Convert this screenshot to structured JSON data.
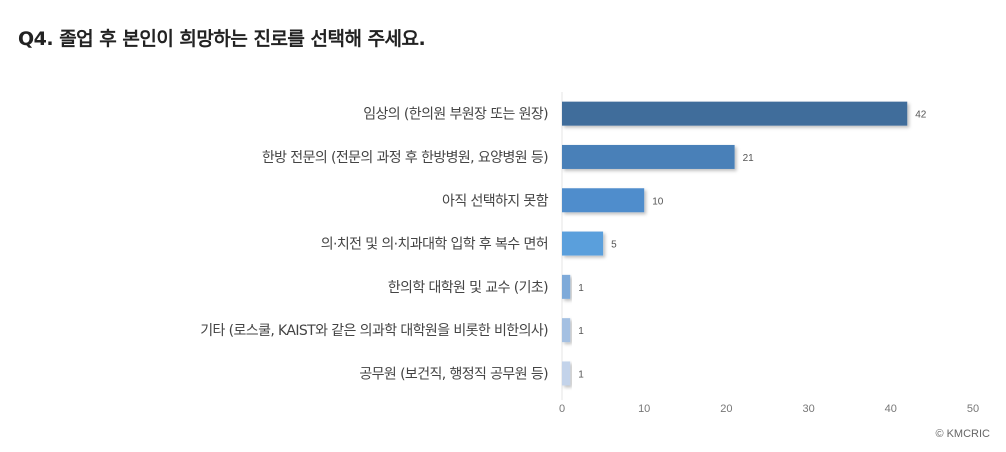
{
  "title": "Q4. 졸업 후 본인이 희망하는 진로를 선택해 주세요.",
  "credit": "© KMCRIC",
  "chart_data": {
    "type": "bar",
    "orientation": "horizontal",
    "categories": [
      "임상의 (한의원 부원장 또는 원장)",
      "한방 전문의 (전문의 과정 후 한방병원, 요양병원 등)",
      "아직 선택하지 못함",
      "의·치전 및 의·치과대학 입학 후 복수 면허",
      "한의학 대학원 및 교수 (기초)",
      "기타 (로스쿨, KAIST와 같은 의과학 대학원을 비롯한 비한의사)",
      "공무원 (보건직, 행정직 공무원 등)"
    ],
    "values": [
      42,
      21,
      10,
      5,
      1,
      1,
      1
    ],
    "data_labels": [
      "42",
      "21",
      "10",
      "5",
      "1",
      "1",
      "1"
    ],
    "colors": [
      "#3f6d9b",
      "#4a80b8",
      "#4f8dcc",
      "#5a9fdc",
      "#7eaad9",
      "#a4c0e2",
      "#c3d3ea"
    ],
    "xlim": [
      0,
      50
    ],
    "xticks": [
      "0",
      "10",
      "20",
      "30",
      "40",
      "50"
    ],
    "grid": false
  }
}
